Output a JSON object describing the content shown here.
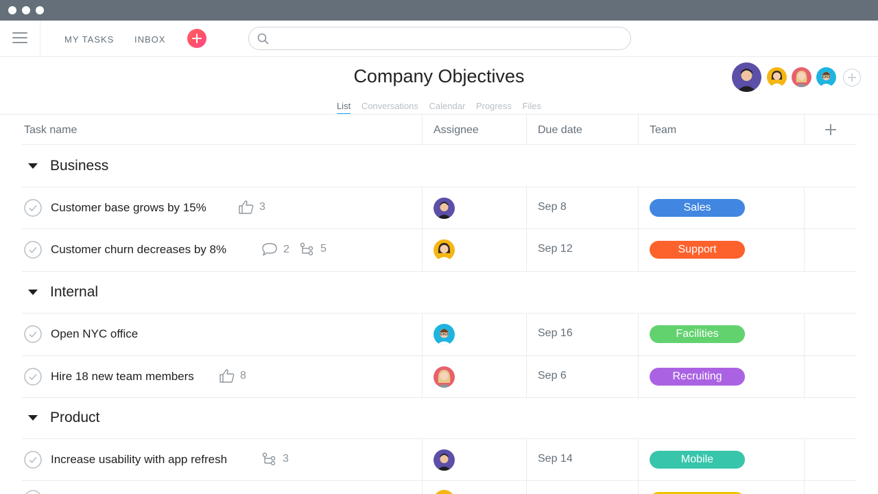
{
  "topbar": {
    "nav": [
      {
        "label": "MY TASKS"
      },
      {
        "label": "INBOX"
      }
    ],
    "search": {
      "value": "",
      "placeholder": ""
    }
  },
  "project": {
    "title": "Company Objectives",
    "tabs": [
      {
        "label": "List",
        "active": true
      },
      {
        "label": "Conversations"
      },
      {
        "label": "Calendar"
      },
      {
        "label": "Progress"
      },
      {
        "label": "Files"
      }
    ]
  },
  "table": {
    "columns": [
      {
        "label": "Task name"
      },
      {
        "label": "Assignee"
      },
      {
        "label": "Due date"
      },
      {
        "label": "Team"
      }
    ],
    "sections": [
      {
        "name": "Business",
        "tasks": [
          {
            "name": "Customer base grows by 15%",
            "likes": "3",
            "due": "Sep 8",
            "team": "Sales",
            "team_color": "#4186e0",
            "assignee_bg": "#5b4fa8"
          },
          {
            "name": "Customer churn decreases by 8%",
            "comments": "2",
            "subtasks": "5",
            "due": "Sep 12",
            "team": "Support",
            "team_color": "#fd612c",
            "assignee_bg": "#f5b614"
          }
        ]
      },
      {
        "name": "Internal",
        "tasks": [
          {
            "name": "Open NYC office",
            "due": "Sep 16",
            "team": "Facilities",
            "team_color": "#62d26f",
            "assignee_bg": "#1fb4e0"
          },
          {
            "name": "Hire 18 new team members",
            "likes": "8",
            "due": "Sep 6",
            "team": "Recruiting",
            "team_color": "#aa62e3",
            "assignee_bg": "#e8606c"
          }
        ]
      },
      {
        "name": "Product",
        "tasks": [
          {
            "name": "Increase usability with app refresh",
            "subtasks": "3",
            "due": "Sep 14",
            "team": "Mobile",
            "team_color": "#37c5ab",
            "assignee_bg": "#5b4fa8"
          }
        ]
      }
    ]
  },
  "colors": {
    "accent": "#14aaf5",
    "chrome": "#646f79",
    "add_button": "#fc636b",
    "partial_row_team": "#eec300",
    "partial_row_assignee": "#f5b614"
  }
}
